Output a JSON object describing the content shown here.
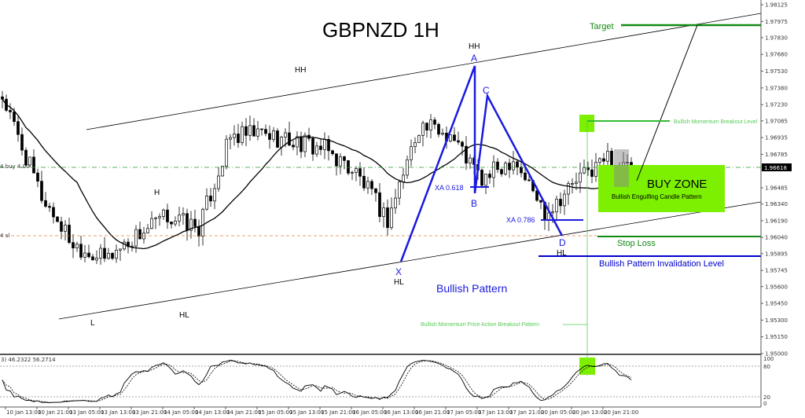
{
  "chart_data": {
    "type": "candlestick",
    "title": "GBPNZD 1H",
    "timeframe": "1H",
    "x_ticks": [
      "10 Jan 13:00",
      "10 Jan 21:00",
      "13 Jan 05:00",
      "13 Jan 13:00",
      "13 Jan 21:00",
      "14 Jan 05:00",
      "14 Jan 13:00",
      "14 Jan 21:00",
      "15 Jan 05:00",
      "15 Jan 13:00",
      "15 Jan 21:00",
      "16 Jan 05:00",
      "16 Jan 13:00",
      "16 Jan 21:00",
      "17 Jan 05:00",
      "17 Jan 13:00",
      "17 Jan 21:00",
      "20 Jan 05:00",
      "20 Jan 13:00",
      "20 Jan 21:00"
    ],
    "approx_close_at_ticks": [
      1.97112,
      1.96407,
      1.95985,
      1.95844,
      1.96055,
      1.96231,
      1.96126,
      1.96935,
      1.9697,
      1.969,
      1.9683,
      1.96618,
      1.96196,
      1.97041,
      1.9697,
      1.96548,
      1.96759,
      1.96267,
      1.96548,
      1.96759
    ],
    "last_close": 1.96618,
    "y_ticks": [
      "1.98125",
      "1.97975",
      "1.97830",
      "1.97680",
      "1.97530",
      "1.97380",
      "1.97230",
      "1.97085",
      "1.96935",
      "1.96785",
      "1.96485",
      "1.96340",
      "1.96190",
      "1.96040",
      "1.95895",
      "1.95745",
      "1.95600",
      "1.95450",
      "1.95300",
      "1.95150",
      "1.95000"
    ],
    "ylim": [
      1.95,
      1.98125
    ],
    "current_price_label": "1.96618",
    "indicator": "moving average (black line)",
    "grid": false,
    "oscillator": {
      "header": "3) 46.2322 56.2714",
      "levels": [
        "100",
        "80",
        "20",
        "0"
      ]
    }
  },
  "levels": {
    "target": {
      "label": "Target",
      "price": 1.97975,
      "color": "#138a13"
    },
    "breakout": {
      "label": "Bullish Momentum Breakout Level",
      "price": 1.97085,
      "color": "#33bb33"
    },
    "stop_loss": {
      "label": "Stop Loss",
      "price": 1.9604,
      "color": "#138a13"
    },
    "invalidation": {
      "label": "Bullish Pattern Invalidation Level",
      "price": 1.95895,
      "color": "#0000cc"
    },
    "buy_order_label": "4 buy 4.00",
    "sl_order_label": "4 sl"
  },
  "annotations": {
    "buy_zone": "BUY ZONE",
    "engulfing": "Bullish Engulfing Candle Pattern",
    "bullish_pattern": "Bullish Pattern",
    "price_action_breakout": "Bullish Momentum Price Action Breakout Pattern",
    "xa618": "XA 0.618",
    "xa786": "XA 0.786",
    "points": {
      "X": "X",
      "A": "A",
      "B": "B",
      "C": "C",
      "D": "D"
    },
    "swings": {
      "hh1": "HH",
      "hh2": "HH",
      "h": "H",
      "l": "L",
      "hl1": "HL",
      "hl2": "HL",
      "hl3": "HL"
    },
    "zone_color": "#7cf000",
    "pattern_color": "#1a1adf"
  }
}
